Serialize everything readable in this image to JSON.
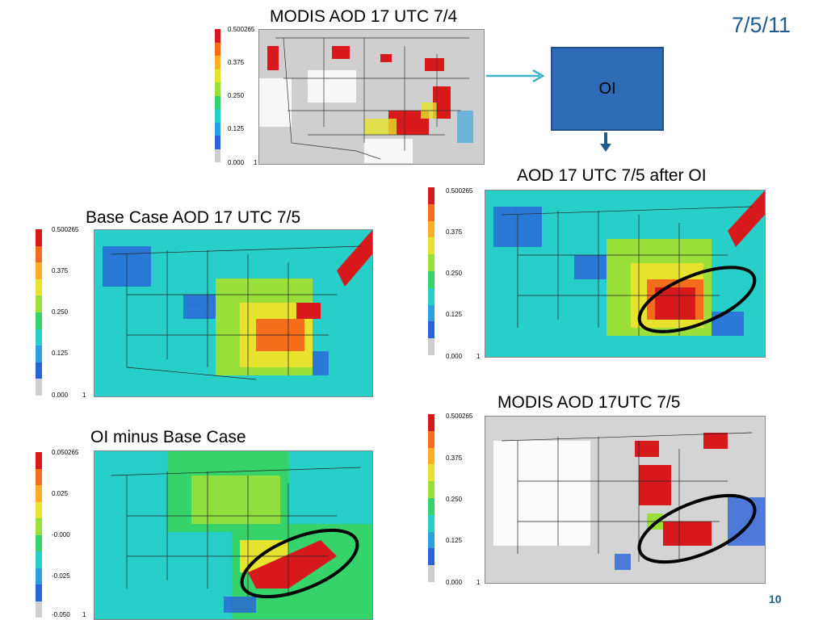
{
  "slide": {
    "date": "7/5/11",
    "page_number": "10"
  },
  "oi_box": {
    "label": "OI"
  },
  "panels": {
    "modis_74": {
      "title": "MODIS  AOD 17 UTC 7/4",
      "ticks": [
        "0.500265",
        "0.375",
        "0.250",
        "0.125",
        "0.000",
        "1"
      ]
    },
    "base": {
      "title": "Base Case AOD 17 UTC 7/5",
      "ticks": [
        "0.500265",
        "0.375",
        "0.250",
        "0.125",
        "0.000",
        "1"
      ]
    },
    "after_oi": {
      "title": "AOD 17 UTC 7/5 after OI",
      "ticks": [
        "0.500265",
        "0.375",
        "0.250",
        "0.125",
        "0.000",
        "1"
      ]
    },
    "diff": {
      "title": "OI  minus Base Case",
      "ticks": [
        "0.050265",
        "0.025",
        "-0.000",
        "-0.025",
        "-0.050",
        "1"
      ]
    },
    "modis_75": {
      "title": "MODIS  AOD 17UTC 7/5",
      "ticks": [
        "0.500265",
        "0.375",
        "0.250",
        "0.125",
        "0.000",
        "1"
      ]
    }
  },
  "colors": {
    "accent": "#1f5c8b",
    "arrow": "#3ab3c9",
    "colorbar": [
      "#d7191c",
      "#f46d1c",
      "#fdae28",
      "#e6e22e",
      "#9be03a",
      "#35d36a",
      "#28cfc8",
      "#2aa0e0",
      "#2a63d9",
      "#cfcfcf"
    ]
  }
}
